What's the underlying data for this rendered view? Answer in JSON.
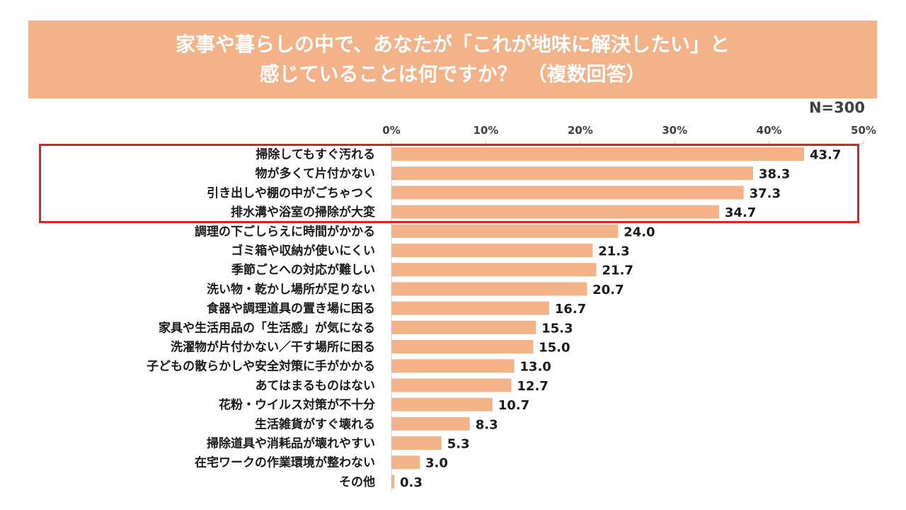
{
  "header": {
    "title_line1": "家事や暮らしの中で、あなたが「これが地味に解決したい」と",
    "title_line2": "感じていることは何ですか？　（複数回答）"
  },
  "sample_size_label": "N=300",
  "colors": {
    "title_band": "#f3b288",
    "bar": "#f3b288",
    "highlight": "#e41f1f",
    "text": "#1a1a1a"
  },
  "chart_data": {
    "type": "bar",
    "orientation": "horizontal",
    "categories": [
      "掃除してもすぐ汚れる",
      "物が多くて片付かない",
      "引き出しや棚の中がごちゃつく",
      "排水溝や浴室の掃除が大変",
      "調理の下ごしらえに時間がかかる",
      "ゴミ箱や収納が使いにくい",
      "季節ごとへの対応が難しい",
      "洗い物・乾かし場所が足りない",
      "食器や調理道具の置き場に困る",
      "家具や生活用品の「生活感」が気になる",
      "洗濯物が片付かない／干す場所に困る",
      "子どもの散らかしや安全対策に手がかかる",
      "あてはまるものはない",
      "花粉・ウイルス対策が不十分",
      "生活雑貨がすぐ壊れる",
      "掃除道具や消耗品が壊れやすい",
      "在宅ワークの作業環境が整わない",
      "その他"
    ],
    "values": [
      43.7,
      38.3,
      37.3,
      34.7,
      24.0,
      21.3,
      21.7,
      20.7,
      16.7,
      15.3,
      15.0,
      13.0,
      12.7,
      10.7,
      8.3,
      5.3,
      3.0,
      0.3
    ],
    "value_labels": [
      "43.7",
      "38.3",
      "37.3",
      "34.7",
      "24.0",
      "21.3",
      "21.7",
      "20.7",
      "16.7",
      "15.3",
      "15.0",
      "13.0",
      "12.7",
      "10.7",
      "8.3",
      "5.3",
      "3.0",
      "0.3"
    ],
    "xlim": [
      0,
      50
    ],
    "xticks": [
      0,
      10,
      20,
      30,
      40,
      50
    ],
    "xtick_labels": [
      "0%",
      "10%",
      "20%",
      "30%",
      "40%",
      "50%"
    ],
    "axis_position": "top",
    "grid": false,
    "highlighted_categories": 4
  }
}
